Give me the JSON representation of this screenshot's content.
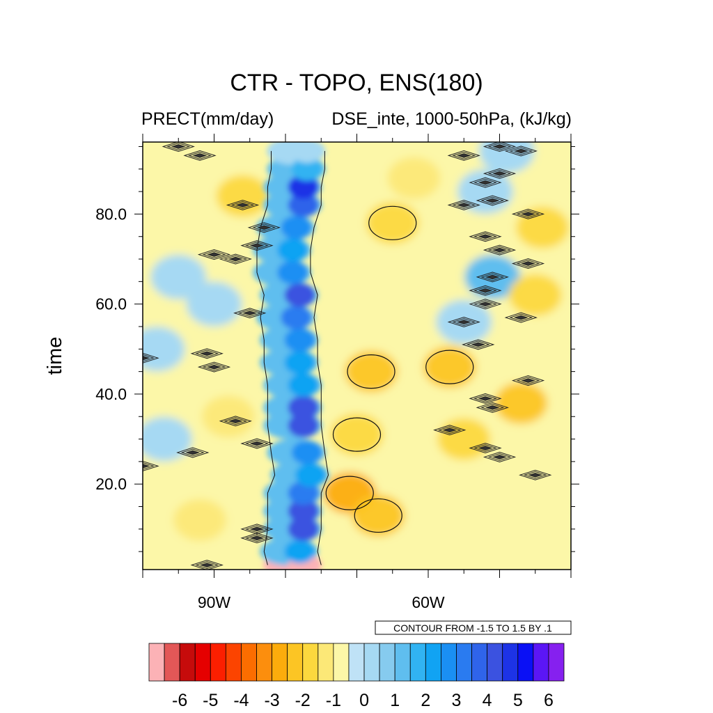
{
  "chart_data": {
    "type": "heatmap",
    "title": "CTR - TOPO, ENS(180)",
    "subtitle_left": "PRECT(mm/day)",
    "subtitle_right": "DSE_inte, 1000-50hPa, (kJ/kg)",
    "ylabel": "time",
    "xlabel": "",
    "x_range": [
      -100,
      -40
    ],
    "y_range": [
      1,
      96
    ],
    "x_ticks": [
      {
        "value": -90,
        "label": "90W"
      },
      {
        "value": -60,
        "label": "60W"
      }
    ],
    "y_ticks": [
      {
        "value": 20,
        "label": "20.0"
      },
      {
        "value": 40,
        "label": "40.0"
      },
      {
        "value": 60,
        "label": "60.0"
      },
      {
        "value": 80,
        "label": "80.0"
      }
    ],
    "contour_info": "CONTOUR FROM -1.5 TO 1.5 BY .1",
    "colorbar": {
      "levels": [
        -6.5,
        -6,
        -5.5,
        -5,
        -4.5,
        -4,
        -3.5,
        -3,
        -2.5,
        -2,
        -1.5,
        -1,
        -0.5,
        0,
        0.5,
        1,
        1.5,
        2,
        2.5,
        3,
        3.5,
        4,
        4.5,
        5,
        5.5,
        6,
        6.5
      ],
      "colors": [
        "#fcb2b6",
        "#e35757",
        "#c60b0b",
        "#e50000",
        "#fc1f00",
        "#fc4400",
        "#fc6d00",
        "#fc8e0d",
        "#fcac0c",
        "#fcc524",
        "#fcd83e",
        "#fce877",
        "#fcf7a8",
        "#bfe2f6",
        "#a6d9f3",
        "#86cbef",
        "#5fbeef",
        "#31b3f2",
        "#11a3f3",
        "#1a8ff3",
        "#2a7bf0",
        "#2f64ea",
        "#3b52e0",
        "#1d33e6",
        "#0a10f5",
        "#5b16f5",
        "#8620ef"
      ],
      "labels": [
        {
          "value": -6,
          "label": "-6"
        },
        {
          "value": -5,
          "label": "-5"
        },
        {
          "value": -4,
          "label": "-4"
        },
        {
          "value": -3,
          "label": "-3"
        },
        {
          "value": -2,
          "label": "-2"
        },
        {
          "value": -1,
          "label": "-1"
        },
        {
          "value": 0,
          "label": "0"
        },
        {
          "value": 1,
          "label": "1"
        },
        {
          "value": 2,
          "label": "2"
        },
        {
          "value": 3,
          "label": "3"
        },
        {
          "value": 4,
          "label": "4"
        },
        {
          "value": 5,
          "label": "5"
        },
        {
          "value": 6,
          "label": "6"
        }
      ]
    },
    "precip_band": [
      {
        "t": 2,
        "lon": -77.5,
        "value": -6.5
      },
      {
        "t": 5,
        "lon": -78,
        "value": 2.5
      },
      {
        "t": 10,
        "lon": -77.5,
        "value": 4.5
      },
      {
        "t": 14,
        "lon": -77.5,
        "value": 4.5
      },
      {
        "t": 18,
        "lon": -77.5,
        "value": 3.5
      },
      {
        "t": 22,
        "lon": -76.5,
        "value": 2.5
      },
      {
        "t": 27,
        "lon": -77,
        "value": 3
      },
      {
        "t": 33,
        "lon": -77.5,
        "value": 4.5
      },
      {
        "t": 37,
        "lon": -77.5,
        "value": 4.5
      },
      {
        "t": 42,
        "lon": -77.5,
        "value": 2.5
      },
      {
        "t": 47,
        "lon": -78,
        "value": 2.5
      },
      {
        "t": 52,
        "lon": -78,
        "value": 3
      },
      {
        "t": 57,
        "lon": -78.5,
        "value": 3.5
      },
      {
        "t": 62,
        "lon": -78,
        "value": 4.5
      },
      {
        "t": 67,
        "lon": -79,
        "value": 3
      },
      {
        "t": 72,
        "lon": -79,
        "value": 2.5
      },
      {
        "t": 77,
        "lon": -78.5,
        "value": 3
      },
      {
        "t": 82,
        "lon": -77.5,
        "value": 4
      },
      {
        "t": 86,
        "lon": -77.5,
        "value": 5
      },
      {
        "t": 90,
        "lon": -77,
        "value": 2
      },
      {
        "t": 94,
        "lon": -77,
        "value": 0.5
      }
    ],
    "warm_anomalies": [
      {
        "lon": -71,
        "t": 18,
        "value": -2.5
      },
      {
        "lon": -67,
        "t": 13,
        "value": -2
      },
      {
        "lon": -68,
        "t": 45,
        "value": -2
      },
      {
        "lon": -70,
        "t": 31,
        "value": -1.5
      },
      {
        "lon": -57,
        "t": 46,
        "value": -2
      },
      {
        "lon": -65,
        "t": 78,
        "value": -1.5
      },
      {
        "lon": -55,
        "t": 30,
        "value": -1.5
      },
      {
        "lon": -47,
        "t": 38,
        "value": -2
      },
      {
        "lon": -45,
        "t": 62,
        "value": -1.5
      },
      {
        "lon": -44,
        "t": 77,
        "value": -1.5
      },
      {
        "lon": -86,
        "t": 84,
        "value": -1.5
      },
      {
        "lon": -92,
        "t": 12,
        "value": -1
      },
      {
        "lon": -62,
        "t": 88,
        "value": -1
      },
      {
        "lon": -88,
        "t": 35,
        "value": -1
      }
    ],
    "cool_anomalies": [
      {
        "lon": -97,
        "t": 30,
        "value": 0.5
      },
      {
        "lon": -95,
        "t": 66,
        "value": 0.5
      },
      {
        "lon": -90,
        "t": 60,
        "value": 0.5
      },
      {
        "lon": -51,
        "t": 66,
        "value": 1.5
      },
      {
        "lon": -52,
        "t": 85,
        "value": 0.5
      },
      {
        "lon": -49,
        "t": 94,
        "value": 0.5
      },
      {
        "lon": -98,
        "t": 50,
        "value": 0.5
      },
      {
        "lon": -55,
        "t": 56,
        "value": 0.5
      }
    ],
    "dse_features": [
      {
        "lon": -92,
        "t": 93
      },
      {
        "lon": -95,
        "t": 95
      },
      {
        "lon": -86,
        "t": 82
      },
      {
        "lon": -83,
        "t": 77
      },
      {
        "lon": -90,
        "t": 71
      },
      {
        "lon": -87,
        "t": 70
      },
      {
        "lon": -84,
        "t": 73
      },
      {
        "lon": -85,
        "t": 58
      },
      {
        "lon": -91,
        "t": 49
      },
      {
        "lon": -100,
        "t": 48
      },
      {
        "lon": -90,
        "t": 46
      },
      {
        "lon": -87,
        "t": 34
      },
      {
        "lon": -84,
        "t": 29
      },
      {
        "lon": -93,
        "t": 27
      },
      {
        "lon": -100,
        "t": 24
      },
      {
        "lon": -84,
        "t": 10
      },
      {
        "lon": -84,
        "t": 8
      },
      {
        "lon": -91,
        "t": 2
      },
      {
        "lon": -55,
        "t": 93
      },
      {
        "lon": -50,
        "t": 95
      },
      {
        "lon": -47,
        "t": 94
      },
      {
        "lon": -50,
        "t": 89
      },
      {
        "lon": -52,
        "t": 87
      },
      {
        "lon": -55,
        "t": 82
      },
      {
        "lon": -51,
        "t": 83
      },
      {
        "lon": -46,
        "t": 80
      },
      {
        "lon": -52,
        "t": 75
      },
      {
        "lon": -50,
        "t": 72
      },
      {
        "lon": -46,
        "t": 69
      },
      {
        "lon": -51,
        "t": 66
      },
      {
        "lon": -52,
        "t": 63
      },
      {
        "lon": -52,
        "t": 60
      },
      {
        "lon": -47,
        "t": 57
      },
      {
        "lon": -55,
        "t": 56
      },
      {
        "lon": -53,
        "t": 51
      },
      {
        "lon": -46,
        "t": 43
      },
      {
        "lon": -52,
        "t": 39
      },
      {
        "lon": -51,
        "t": 37
      },
      {
        "lon": -57,
        "t": 32
      },
      {
        "lon": -52,
        "t": 28
      },
      {
        "lon": -50,
        "t": 26
      },
      {
        "lon": -45,
        "t": 22
      }
    ]
  }
}
